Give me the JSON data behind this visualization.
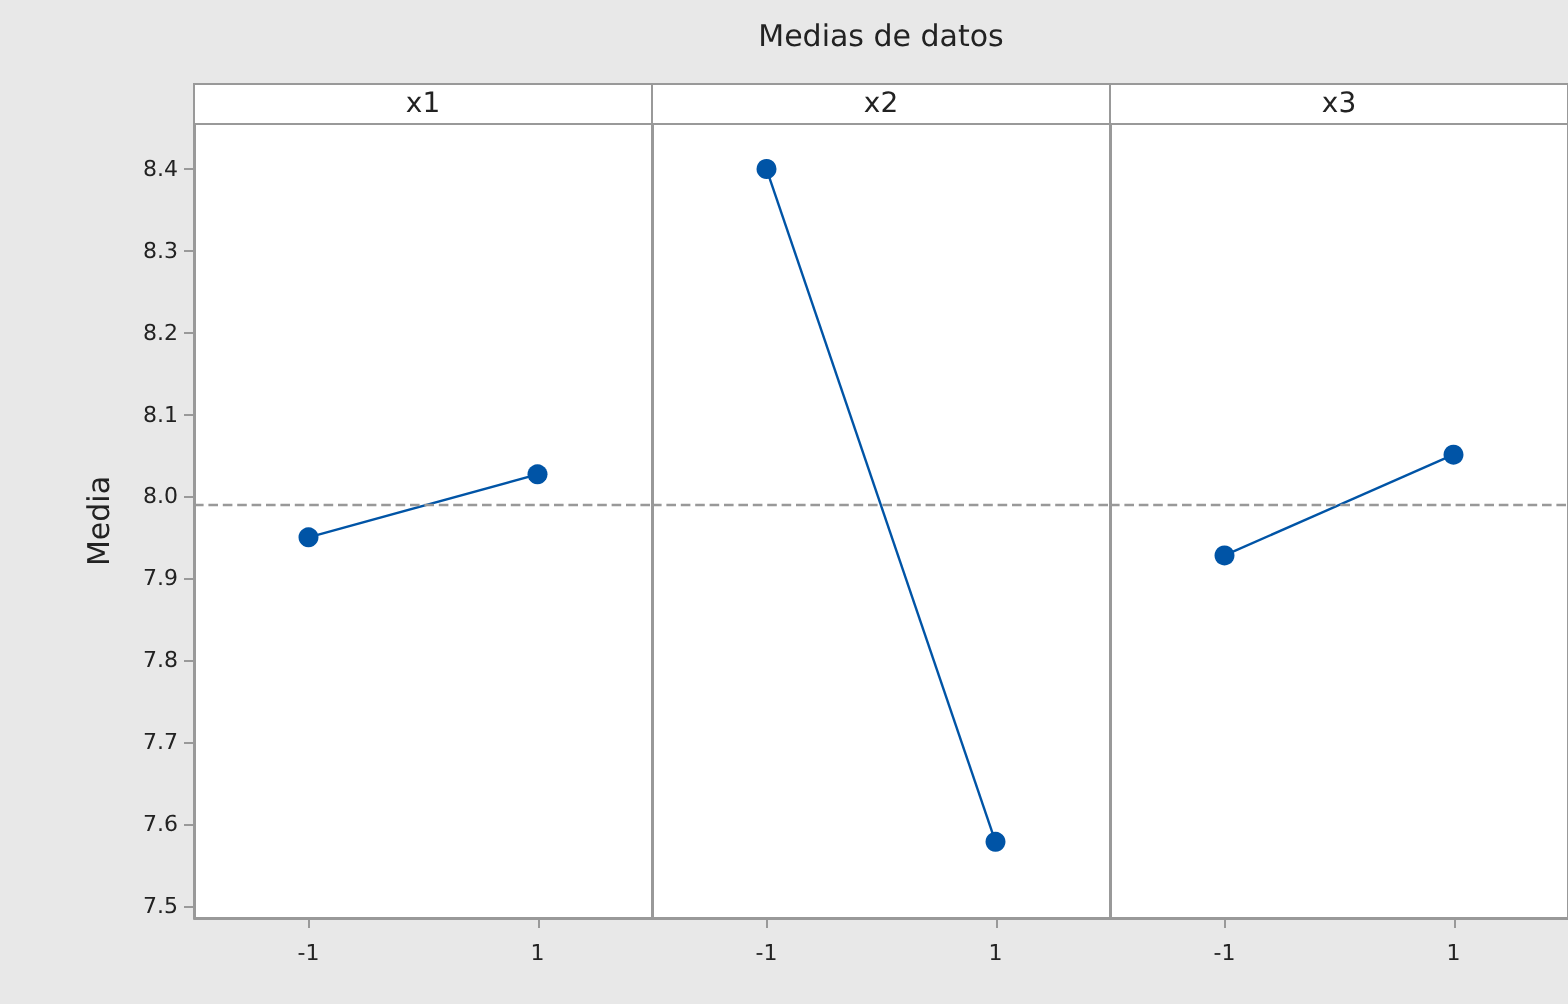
{
  "chart_data": [
    {
      "type": "line",
      "annotations": [
        "Medias de datos"
      ],
      "title": "x1",
      "ylabel": "Media",
      "categories": [
        "-1",
        "1"
      ],
      "series": [
        {
          "color": "#0054a6",
          "values": [
            7.95,
            8.027
          ]
        }
      ],
      "ylim": [
        7.485,
        8.455
      ],
      "yticks": [
        7.5,
        7.6,
        7.7,
        7.8,
        7.9,
        {
          "value": 8,
          "label": "8.0"
        },
        8.1,
        8.2,
        8.3,
        8.4
      ],
      "ref_lines": [
        {
          "axis": "y",
          "value": 7.988,
          "color": "#999999",
          "line_style": "dashed"
        }
      ],
      "marker": "circle",
      "line_style": "solid"
    },
    {
      "type": "line",
      "title": "x2",
      "categories": [
        "-1",
        "1"
      ],
      "series": [
        {
          "color": "#0054a6",
          "values": [
            8.4,
            7.578
          ]
        }
      ],
      "ylim": [
        7.485,
        8.455
      ],
      "ref_lines": [
        {
          "axis": "y",
          "value": 7.988,
          "color": "#999999",
          "line_style": "dashed"
        }
      ],
      "marker": "circle",
      "line_style": "solid",
      "tick_labels": "x"
    },
    {
      "type": "line",
      "title": "x3",
      "categories": [
        "-1",
        "1"
      ],
      "series": [
        {
          "color": "#0054a6",
          "values": [
            7.928,
            8.051
          ]
        }
      ],
      "ylim": [
        7.485,
        8.455
      ],
      "ref_lines": [
        {
          "axis": "y",
          "value": 7.988,
          "color": "#999999",
          "line_style": "dashed"
        }
      ],
      "marker": "circle",
      "line_style": "solid",
      "tick_labels": "x"
    }
  ]
}
